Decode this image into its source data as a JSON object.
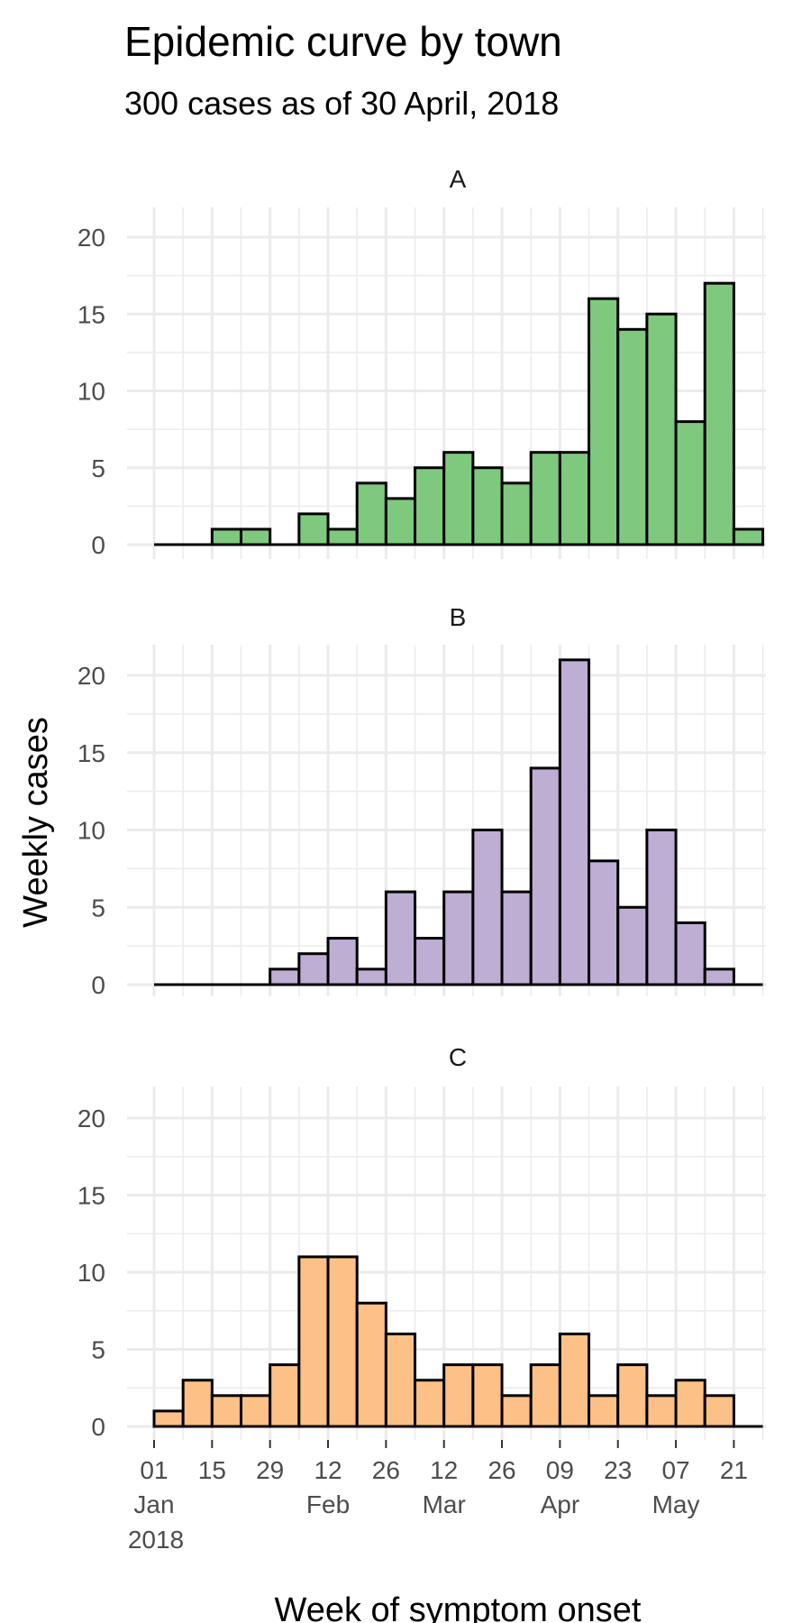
{
  "chart_data": {
    "type": "bar",
    "title": "Epidemic curve by town",
    "subtitle": "300 cases as of 30 April, 2018",
    "xlabel": "Week of symptom onset",
    "ylabel": "Weekly cases",
    "ylim": [
      0,
      22
    ],
    "y_ticks": [
      0,
      5,
      10,
      15,
      20
    ],
    "weeks": [
      "2018-01-01",
      "2018-01-08",
      "2018-01-15",
      "2018-01-22",
      "2018-01-29",
      "2018-02-05",
      "2018-02-12",
      "2018-02-19",
      "2018-02-26",
      "2018-03-05",
      "2018-03-12",
      "2018-03-19",
      "2018-03-26",
      "2018-04-02",
      "2018-04-09",
      "2018-04-16",
      "2018-04-23",
      "2018-04-30",
      "2018-05-07",
      "2018-05-14",
      "2018-05-21"
    ],
    "x_ticks": [
      {
        "week_index": 0,
        "label": "01",
        "month": "Jan",
        "year": "2018"
      },
      {
        "week_index": 2,
        "label": "15",
        "month": "",
        "year": ""
      },
      {
        "week_index": 4,
        "label": "29",
        "month": "",
        "year": ""
      },
      {
        "week_index": 6,
        "label": "12",
        "month": "Feb",
        "year": ""
      },
      {
        "week_index": 8,
        "label": "26",
        "month": "",
        "year": ""
      },
      {
        "week_index": 10,
        "label": "12",
        "month": "Mar",
        "year": ""
      },
      {
        "week_index": 12,
        "label": "26",
        "month": "",
        "year": ""
      },
      {
        "week_index": 14,
        "label": "09",
        "month": "Apr",
        "year": ""
      },
      {
        "week_index": 16,
        "label": "23",
        "month": "",
        "year": ""
      },
      {
        "week_index": 18,
        "label": "07",
        "month": "May",
        "year": ""
      },
      {
        "week_index": 20,
        "label": "21",
        "month": "",
        "year": ""
      }
    ],
    "facets": [
      {
        "name": "A",
        "color": "#7fc97f",
        "values": [
          0,
          0,
          1,
          1,
          0,
          2,
          1,
          4,
          3,
          5,
          6,
          5,
          4,
          6,
          6,
          16,
          14,
          15,
          8,
          17,
          1
        ]
      },
      {
        "name": "B",
        "color": "#beaed4",
        "values": [
          0,
          0,
          0,
          0,
          1,
          2,
          3,
          1,
          6,
          3,
          6,
          10,
          6,
          14,
          21,
          8,
          5,
          10,
          4,
          1,
          0
        ]
      },
      {
        "name": "C",
        "color": "#fdc086",
        "values": [
          1,
          3,
          2,
          2,
          4,
          11,
          11,
          8,
          6,
          3,
          4,
          4,
          2,
          4,
          6,
          2,
          4,
          2,
          3,
          2,
          0
        ]
      }
    ]
  }
}
